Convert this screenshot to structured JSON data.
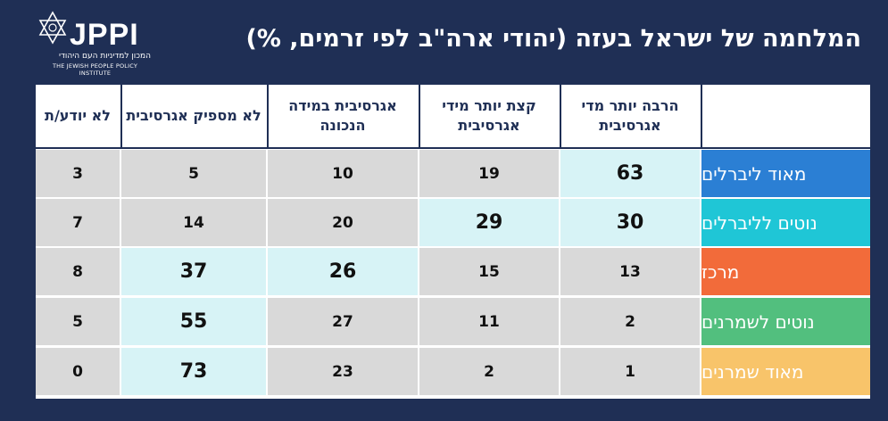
{
  "logo": {
    "brand": "JPPI",
    "subtitle_he": "המכון למדיניות העם היהודי",
    "subtitle_en": "THE JEWISH PEOPLE POLICY INSTITUTE"
  },
  "colors": {
    "background": "#1f2f55",
    "highlight": "#d7f3f6",
    "cell": "#d9d9d9",
    "rows": [
      "#2b7fd4",
      "#1fc6d6",
      "#f26b3a",
      "#52bf7e",
      "#f8c46a"
    ]
  },
  "chart_data": {
    "type": "table",
    "title": "המלחמה של ישראל בעזה (יהודי ארה\"ב לפי זרמים, %)",
    "columns": [
      "הרבה יותר מדי אגרסיבית",
      "קצת יותר מידי אגרסיבית",
      "אגרסיבית במידה הנכונה",
      "לא מספיק אגרסיבית",
      "לא יודע/ת"
    ],
    "rows": [
      {
        "label": "מאוד ליברלים",
        "values": [
          "63",
          "19",
          "10",
          "5",
          "3"
        ],
        "highlight": [
          0
        ]
      },
      {
        "label": "נוטים לליברלים",
        "values": [
          "30",
          "29",
          "20",
          "14",
          "7"
        ],
        "highlight": [
          0,
          1
        ]
      },
      {
        "label": "מרכז",
        "values": [
          "13",
          "15",
          "26",
          "37",
          "8"
        ],
        "highlight": [
          2,
          3
        ]
      },
      {
        "label": "נוטים לשמרנים",
        "values": [
          "2",
          "11",
          "27",
          "55",
          "5"
        ],
        "highlight": [
          3
        ]
      },
      {
        "label": "מאוד שמרנים",
        "values": [
          "1",
          "2",
          "23",
          "73",
          "0"
        ],
        "highlight": [
          3
        ]
      }
    ]
  }
}
